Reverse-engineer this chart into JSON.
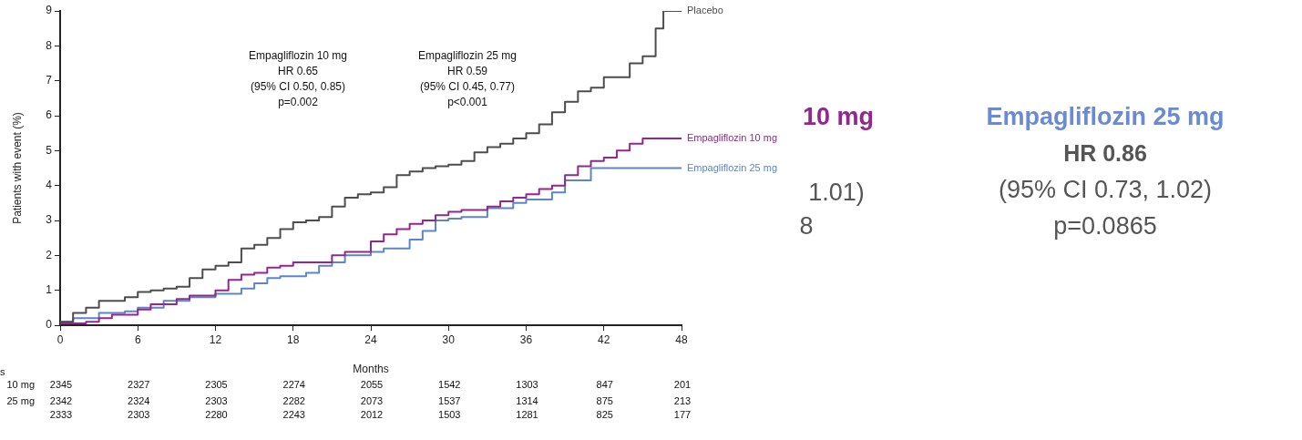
{
  "chart_data": {
    "type": "step",
    "xlabel": "Months",
    "ylabel": "Patients with event (%)",
    "xlim": [
      0,
      48
    ],
    "xticks": [
      0,
      6,
      12,
      18,
      24,
      30,
      36,
      42,
      48
    ],
    "ylim": [
      0,
      9
    ],
    "yticks": [
      0,
      1,
      2,
      3,
      4,
      5,
      6,
      7,
      8,
      9
    ],
    "grid": false,
    "legend": false,
    "series": [
      {
        "name": "Placebo",
        "color": "#4d4d4d",
        "x": [
          0,
          1,
          2,
          3,
          4,
          5,
          6,
          7,
          8,
          9,
          10,
          11,
          12,
          13,
          14,
          15,
          16,
          17,
          18,
          19,
          20,
          21,
          22,
          23,
          24,
          25,
          26,
          27,
          28,
          29,
          30,
          31,
          32,
          33,
          34,
          35,
          36,
          37,
          38,
          39,
          40,
          41,
          42,
          44,
          45,
          46,
          46.6,
          47.3,
          48
        ],
        "values": [
          0,
          0.1,
          0.35,
          0.5,
          0.7,
          0.7,
          0.8,
          0.95,
          1.0,
          1.05,
          1.1,
          1.35,
          1.6,
          1.7,
          1.8,
          2.2,
          2.3,
          2.5,
          2.75,
          2.95,
          3.0,
          3.1,
          3.4,
          3.65,
          3.75,
          3.8,
          3.95,
          4.3,
          4.4,
          4.5,
          4.55,
          4.6,
          4.7,
          4.95,
          5.1,
          5.2,
          5.35,
          5.5,
          5.75,
          6.1,
          6.4,
          6.7,
          6.8,
          7.1,
          7.5,
          7.7,
          8.5,
          9.0,
          9.0
        ]
      },
      {
        "name": "Empagliflozin 10 mg",
        "color": "#93268f",
        "x": [
          0,
          2,
          3,
          4,
          6,
          7,
          9,
          10,
          12,
          13,
          14,
          15,
          16,
          17,
          18,
          21,
          22,
          24,
          25,
          26,
          27,
          28,
          29,
          30,
          31,
          33,
          34,
          35,
          36,
          37,
          38,
          39,
          40,
          41,
          42,
          43,
          44,
          45,
          46,
          48
        ],
        "values": [
          0,
          0.05,
          0.1,
          0.2,
          0.3,
          0.45,
          0.6,
          0.75,
          0.85,
          1.0,
          1.3,
          1.45,
          1.5,
          1.65,
          1.7,
          1.8,
          2.0,
          2.1,
          2.4,
          2.6,
          2.75,
          2.9,
          3.0,
          3.15,
          3.25,
          3.3,
          3.4,
          3.55,
          3.65,
          3.75,
          3.9,
          4.0,
          4.3,
          4.55,
          4.7,
          4.8,
          5.0,
          5.2,
          5.35,
          5.35
        ]
      },
      {
        "name": "Empagliflozin 25 mg",
        "color": "#5b86c8",
        "x": [
          0,
          1,
          3,
          5,
          6,
          8,
          10,
          12,
          14,
          15,
          16,
          17,
          19,
          20,
          21,
          22,
          24,
          25,
          27,
          28,
          29,
          30,
          31,
          33,
          35,
          36,
          38,
          39,
          41,
          46.6,
          48
        ],
        "values": [
          0,
          0.1,
          0.2,
          0.35,
          0.4,
          0.5,
          0.7,
          0.8,
          0.9,
          1.05,
          1.2,
          1.35,
          1.4,
          1.5,
          1.7,
          1.8,
          2.0,
          2.1,
          2.2,
          2.45,
          2.7,
          3.0,
          3.05,
          3.1,
          3.35,
          3.5,
          3.6,
          3.8,
          4.15,
          4.5,
          4.5
        ]
      }
    ],
    "annotations": [
      "Empagliflozin 10 mg",
      "HR 0.65",
      "(95% CI 0.50, 0.85)",
      "p=0.002",
      "Empagliflozin 25 mg",
      "HR 0.59",
      "(95% CI 0.45, 0.77)",
      "p<0.001",
      "s",
      "10 mg",
      "25 mg",
      "2345",
      "2327",
      "2305",
      "2274",
      "2055",
      "1542",
      "1303",
      "847",
      "201",
      "2342",
      "2324",
      "2303",
      "2282",
      "2073",
      "1537",
      "1314",
      "875",
      "213",
      "2333",
      "2303",
      "2280",
      "2243",
      "2012",
      "1503",
      "1281",
      "825",
      "177",
      "10 mg",
      "1.01)",
      "8",
      "Empagliflozin 25 mg",
      "HR 0.86",
      "(95% CI 0.73, 1.02)",
      "p=0.0865"
    ]
  }
}
